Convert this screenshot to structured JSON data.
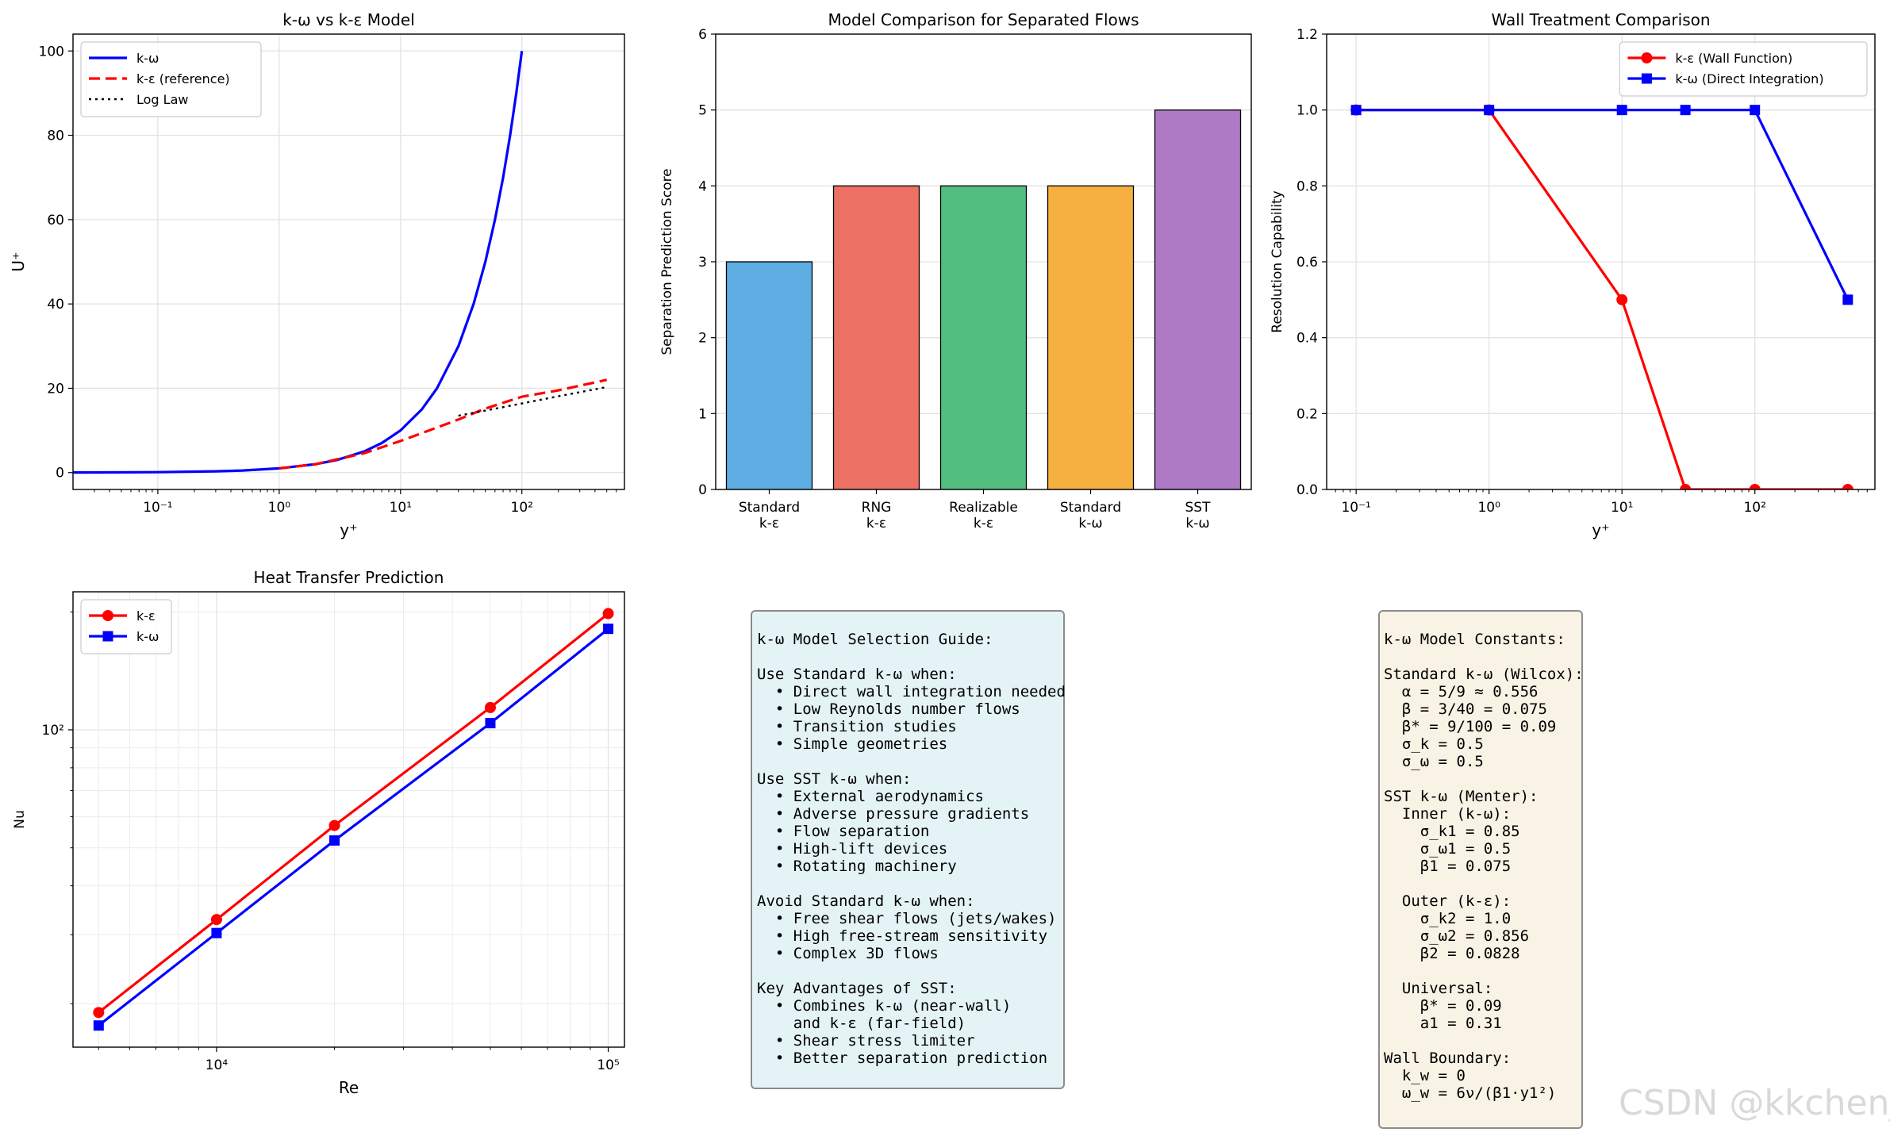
{
  "chart_data": [
    {
      "type": "line",
      "title": "k-ω vs k-ε Model",
      "xlabel": "y⁺",
      "ylabel": "U⁺",
      "xscale": "log",
      "xlim": [
        0.02,
        700
      ],
      "ylim": [
        -4,
        104
      ],
      "xticks": [
        {
          "v": 0.1,
          "label": "10⁻¹"
        },
        {
          "v": 1,
          "label": "10⁰"
        },
        {
          "v": 10,
          "label": "10¹"
        },
        {
          "v": 100,
          "label": "10²"
        }
      ],
      "yticks": [
        0,
        20,
        40,
        60,
        80,
        100
      ],
      "grid": true,
      "legend": "top-left",
      "series": [
        {
          "name": "k-ω",
          "color": "#0000ff",
          "style": "solid",
          "x": [
            0.02,
            0.1,
            0.3,
            0.5,
            1,
            2,
            3,
            5,
            7,
            10,
            15,
            20,
            30,
            40,
            50,
            60,
            70,
            80,
            90,
            100
          ],
          "y": [
            0.02,
            0.1,
            0.3,
            0.5,
            1,
            2,
            3,
            5,
            7,
            10,
            15,
            20,
            30,
            40,
            50,
            60,
            70,
            80,
            90,
            100
          ]
        },
        {
          "name": "k-ε (reference)",
          "color": "#ff0000",
          "style": "dashed",
          "x": [
            1,
            2,
            5,
            10,
            20,
            30,
            50,
            100,
            200,
            500
          ],
          "y": [
            1,
            2,
            4.6,
            7.5,
            10.7,
            12.6,
            15.2,
            18.0,
            19.5,
            22.0
          ]
        },
        {
          "name": "Log Law",
          "color": "#000000",
          "style": "dotted",
          "x": [
            30,
            50,
            100,
            200,
            500
          ],
          "y": [
            13.5,
            14.7,
            16.4,
            18.1,
            20.3
          ]
        }
      ]
    },
    {
      "type": "bar",
      "title": "Model Comparison for Separated Flows",
      "ylabel": "Separation Prediction Score",
      "ylim": [
        0,
        6
      ],
      "yticks": [
        0,
        1,
        2,
        3,
        4,
        5,
        6
      ],
      "grid": true,
      "categories": [
        "Standard\nk-ε",
        "RNG\nk-ε",
        "Realizable\nk-ε",
        "Standard\nk-ω",
        "SST\nk-ω"
      ],
      "values": [
        3,
        4,
        4,
        4,
        5
      ],
      "colors": [
        "#5dade2",
        "#ec7063",
        "#52be80",
        "#f5b041",
        "#af7ac5"
      ]
    },
    {
      "type": "line",
      "title": "Wall Treatment Comparison",
      "xlabel": "y⁺",
      "ylabel": "Resolution Capability",
      "xscale": "log",
      "xlim": [
        0.06,
        800
      ],
      "ylim": [
        0,
        1.2
      ],
      "xticks": [
        {
          "v": 0.1,
          "label": "10⁻¹"
        },
        {
          "v": 1,
          "label": "10⁰"
        },
        {
          "v": 10,
          "label": "10¹"
        },
        {
          "v": 100,
          "label": "10²"
        }
      ],
      "yticks": [
        0.0,
        0.2,
        0.4,
        0.6,
        0.8,
        1.0,
        1.2
      ],
      "grid": true,
      "legend": "top-right",
      "series": [
        {
          "name": "k-ε (Wall Function)",
          "color": "#ff0000",
          "marker": "circle",
          "x": [
            0.1,
            1,
            10,
            30,
            100,
            500
          ],
          "y": [
            1.0,
            1.0,
            0.5,
            0.0,
            0.0,
            0.0
          ]
        },
        {
          "name": "k-ω (Direct Integration)",
          "color": "#0000ff",
          "marker": "square",
          "x": [
            0.1,
            1,
            10,
            30,
            100,
            500
          ],
          "y": [
            1.0,
            1.0,
            1.0,
            1.0,
            1.0,
            0.5
          ]
        }
      ]
    },
    {
      "type": "line",
      "title": "Heat Transfer Prediction",
      "xlabel": "Re",
      "ylabel": "Nu",
      "xscale": "log",
      "yscale": "log",
      "xlim": [
        4300,
        110000
      ],
      "ylim": [
        15.5,
        225
      ],
      "xticks": [
        {
          "v": 10000,
          "label": "10⁴"
        },
        {
          "v": 100000,
          "label": "10⁵"
        }
      ],
      "yticks": [
        {
          "v": 100,
          "label": "10²"
        }
      ],
      "grid": true,
      "legend": "top-left",
      "series": [
        {
          "name": "k-ε",
          "color": "#ff0000",
          "marker": "circle",
          "x": [
            5000,
            10000,
            20000,
            50000,
            100000
          ],
          "y": [
            19.0,
            32.8,
            57.0,
            114.0,
            198.0
          ]
        },
        {
          "name": "k-ω",
          "color": "#0000ff",
          "marker": "square",
          "x": [
            5000,
            10000,
            20000,
            50000,
            100000
          ],
          "y": [
            17.6,
            30.3,
            52.2,
            104.0,
            181.0
          ]
        }
      ]
    }
  ],
  "guide_box": {
    "lines": [
      "k-ω Model Selection Guide:",
      "",
      "Use Standard k-ω when:",
      "  • Direct wall integration needed",
      "  • Low Reynolds number flows",
      "  • Transition studies",
      "  • Simple geometries",
      "",
      "Use SST k-ω when:",
      "  • External aerodynamics",
      "  • Adverse pressure gradients",
      "  • Flow separation",
      "  • High-lift devices",
      "  • Rotating machinery",
      "",
      "Avoid Standard k-ω when:",
      "  • Free shear flows (jets/wakes)",
      "  • High free-stream sensitivity",
      "  • Complex 3D flows",
      "",
      "Key Advantages of SST:",
      "  • Combines k-ω (near-wall)",
      "    and k-ε (far-field)",
      "  • Shear stress limiter",
      "  • Better separation prediction"
    ],
    "bg": "#e4f3f6"
  },
  "constants_box": {
    "lines": [
      "k-ω Model Constants:",
      "",
      "Standard k-ω (Wilcox):",
      "  α = 5/9 ≈ 0.556",
      "  β = 3/40 = 0.075",
      "  β* = 9/100 = 0.09",
      "  σ_k = 0.5",
      "  σ_ω = 0.5",
      "",
      "SST k-ω (Menter):",
      "  Inner (k-ω):",
      "    σ_k1 = 0.85",
      "    σ_ω1 = 0.5",
      "    β1 = 0.075",
      "",
      "  Outer (k-ε):",
      "    σ_k2 = 1.0",
      "    σ_ω2 = 0.856",
      "    β2 = 0.0828",
      "",
      "  Universal:",
      "    β* = 0.09",
      "    a1 = 0.31",
      "",
      "Wall Boundary:",
      "  k_w = 0",
      "  ω_w = 6ν/(β1·y1²)"
    ],
    "bg": "#f8f3e5"
  },
  "watermark": "CSDN @kkchenjj"
}
